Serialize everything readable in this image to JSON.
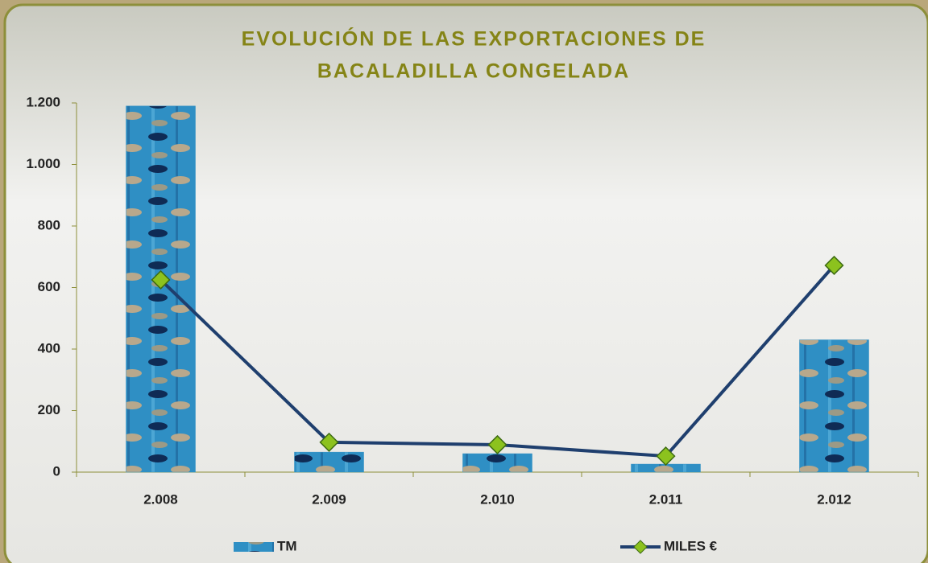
{
  "chart_data": {
    "type": "bar-line",
    "title": [
      "EVOLUCIÓN DE LAS EXPORTACIONES DE",
      "BACALADILLA CONGELADA"
    ],
    "categories": [
      "2.008",
      "2.009",
      "2.010",
      "2.011",
      "2.012"
    ],
    "series": [
      {
        "name": "TM",
        "type": "bar",
        "color": "#2f8fc4",
        "values": [
          1190,
          65,
          60,
          26,
          430
        ]
      },
      {
        "name": "MILES €",
        "type": "line",
        "color": "#1f3f6e",
        "marker_color": "#8cc21e",
        "values": [
          625,
          97,
          89,
          52,
          672
        ]
      }
    ],
    "ylim": [
      0,
      1200
    ],
    "yticks": [
      0,
      200,
      400,
      600,
      800,
      {
        "value": 1000,
        "label": "1.000"
      },
      {
        "value": 1200,
        "label": "1.200"
      }
    ]
  }
}
